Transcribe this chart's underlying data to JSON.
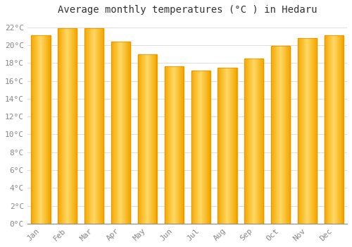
{
  "title": "Average monthly temperatures (°C ) in Hedaru",
  "months": [
    "Jan",
    "Feb",
    "Mar",
    "Apr",
    "May",
    "Jun",
    "Jul",
    "Aug",
    "Sep",
    "Oct",
    "Nov",
    "Dec"
  ],
  "values": [
    21.1,
    21.9,
    21.9,
    20.4,
    19.0,
    17.6,
    17.2,
    17.5,
    18.5,
    19.9,
    20.8,
    21.1
  ],
  "bar_color_edge": "#F5A800",
  "bar_color_center": "#FFD966",
  "background_color": "#FFFFFF",
  "grid_color": "#DDDDDD",
  "ylim": [
    0,
    23
  ],
  "yticks": [
    0,
    2,
    4,
    6,
    8,
    10,
    12,
    14,
    16,
    18,
    20,
    22
  ],
  "ytick_labels": [
    "0°C",
    "2°C",
    "4°C",
    "6°C",
    "8°C",
    "10°C",
    "12°C",
    "14°C",
    "16°C",
    "18°C",
    "20°C",
    "22°C"
  ],
  "title_fontsize": 10,
  "tick_fontsize": 8,
  "tick_color": "#888888",
  "title_color": "#333333",
  "bar_width": 0.7,
  "gradient_steps": 50
}
